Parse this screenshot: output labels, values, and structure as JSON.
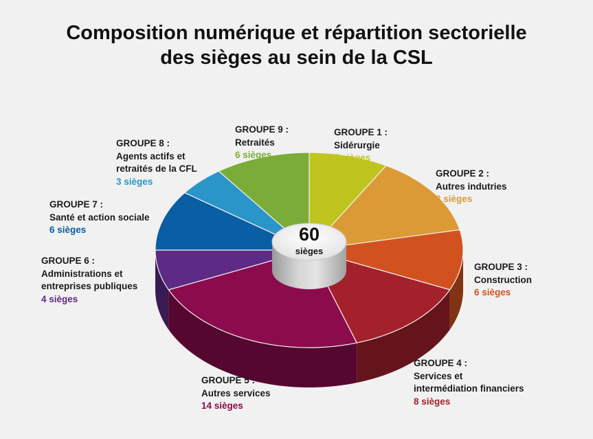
{
  "chart_data": {
    "type": "pie",
    "title_lines": [
      "Composition numérique et répartition sectorielle",
      "des sièges au sein de la CSL"
    ],
    "total": {
      "value": "60",
      "unit": "sièges"
    },
    "slices": [
      {
        "group": "GROUPE 1 :",
        "lines": [
          "Sidérurgie"
        ],
        "seats_label": "5 sièges",
        "value": 5,
        "color": "#bfc51e"
      },
      {
        "group": "GROUPE 2 :",
        "lines": [
          "Autres indutries"
        ],
        "seats_label": "8 sièges",
        "value": 8,
        "color": "#dc9a36"
      },
      {
        "group": "GROUPE 3 :",
        "lines": [
          "Construction"
        ],
        "seats_label": "6 sièges",
        "value": 6,
        "color": "#d2521f"
      },
      {
        "group": "GROUPE 4 :",
        "lines": [
          "Services et",
          "intermédiation financiers"
        ],
        "seats_label": "8 sièges",
        "value": 8,
        "color": "#a3212b"
      },
      {
        "group": "GROUPE 5 :",
        "lines": [
          "Autres services"
        ],
        "seats_label": "14 sièges",
        "value": 14,
        "color": "#8b0b4d"
      },
      {
        "group": "GROUPE 6 :",
        "lines": [
          "Administrations et",
          "entreprises publiques"
        ],
        "seats_label": "4 sièges",
        "value": 4,
        "color": "#5d2a86"
      },
      {
        "group": "GROUPE 7 :",
        "lines": [
          "Santé et action sociale"
        ],
        "seats_label": "6 sièges",
        "value": 6,
        "color": "#0a5ea3"
      },
      {
        "group": "GROUPE 8 :",
        "lines": [
          "Agents actifs et",
          "retraités de la CFL"
        ],
        "seats_label": "3 sièges",
        "value": 3,
        "color": "#2a95c8"
      },
      {
        "group": "GROUPE 9 :",
        "lines": [
          "Retraités"
        ],
        "seats_label": "6 sièges",
        "value": 6,
        "color": "#7bac38"
      }
    ]
  }
}
